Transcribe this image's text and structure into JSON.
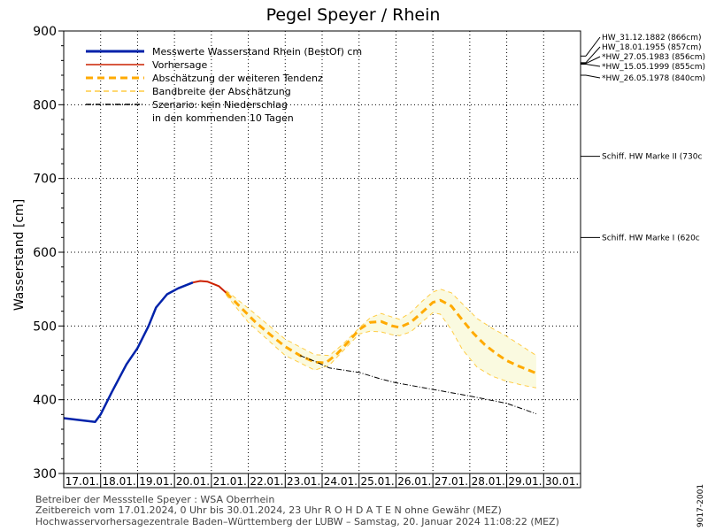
{
  "chart_data": {
    "type": "line",
    "title": "Pegel Speyer / Rhein",
    "ylabel": "Wasserstand  [cm]",
    "ylim": [
      300,
      900
    ],
    "yticks": [
      300,
      400,
      500,
      600,
      700,
      800,
      900
    ],
    "x_day_labels": [
      "17.01.",
      "18.01.",
      "19.01.",
      "20.01.",
      "21.01.",
      "22.01.",
      "23.01.",
      "24.01.",
      "25.01.",
      "26.01.",
      "27.01.",
      "28.01.",
      "29.01.",
      "30.01."
    ],
    "grid": true,
    "legend": {
      "placement": "top-left",
      "entries": [
        {
          "label": "Messwerte Wasserstand Rhein (BestOf)   cm",
          "color": "#0022aa",
          "style": "solid-thick"
        },
        {
          "label": "Vorhersage",
          "color": "#cc2200",
          "style": "solid"
        },
        {
          "label": "Abschätzung der weiteren Tendenz",
          "color": "#ffaa00",
          "style": "dashed-thick"
        },
        {
          "label": "Bandbreite der Abschätzung",
          "color": "#ffcc44",
          "style": "dashed"
        },
        {
          "label": "Szenario: kein Niederschlag",
          "color": "#000000",
          "style": "dashdot"
        },
        {
          "label": "in den kommenden 10 Tagen",
          "color": null,
          "style": "none"
        }
      ]
    },
    "series": [
      {
        "name": "Messwerte Wasserstand Rhein (BestOf)",
        "color": "#0022aa",
        "points": [
          [
            0,
            375
          ],
          [
            0.5,
            372
          ],
          [
            0.85,
            370
          ],
          [
            1.0,
            380
          ],
          [
            1.3,
            410
          ],
          [
            1.7,
            448
          ],
          [
            2.0,
            470
          ],
          [
            2.3,
            500
          ],
          [
            2.5,
            525
          ],
          [
            2.8,
            543
          ],
          [
            3.1,
            551
          ],
          [
            3.5,
            559
          ]
        ]
      },
      {
        "name": "Vorhersage",
        "color": "#cc2200",
        "points": [
          [
            3.5,
            559
          ],
          [
            3.7,
            561
          ],
          [
            3.9,
            560
          ],
          [
            4.2,
            554
          ],
          [
            4.4,
            545
          ]
        ]
      },
      {
        "name": "Abschätzung der weiteren Tendenz",
        "color": "#ffaa00",
        "points": [
          [
            4.4,
            545
          ],
          [
            4.8,
            525
          ],
          [
            5.2,
            505
          ],
          [
            5.6,
            488
          ],
          [
            6.0,
            472
          ],
          [
            6.4,
            460
          ],
          [
            6.8,
            451
          ],
          [
            7.1,
            450
          ],
          [
            7.4,
            462
          ],
          [
            7.7,
            478
          ],
          [
            8.0,
            495
          ],
          [
            8.3,
            505
          ],
          [
            8.6,
            506
          ],
          [
            8.9,
            500
          ],
          [
            9.1,
            498
          ],
          [
            9.4,
            505
          ],
          [
            9.7,
            518
          ],
          [
            10.0,
            532
          ],
          [
            10.2,
            535
          ],
          [
            10.5,
            527
          ],
          [
            10.8,
            508
          ],
          [
            11.1,
            490
          ],
          [
            11.4,
            475
          ],
          [
            11.7,
            463
          ],
          [
            12.0,
            453
          ],
          [
            12.3,
            446
          ],
          [
            12.6,
            440
          ],
          [
            12.8,
            436
          ]
        ]
      },
      {
        "name": "Szenario: kein Niederschlag",
        "color": "#000000",
        "points": [
          [
            6.4,
            460
          ],
          [
            6.8,
            452
          ],
          [
            7.2,
            443
          ],
          [
            8.0,
            437
          ],
          [
            8.6,
            428
          ],
          [
            9.0,
            423
          ],
          [
            10.0,
            414
          ],
          [
            11.0,
            405
          ],
          [
            12.0,
            395
          ],
          [
            12.8,
            381
          ]
        ]
      }
    ],
    "band": {
      "upper": [
        [
          4.4,
          548
        ],
        [
          5.0,
          524
        ],
        [
          6.0,
          482
        ],
        [
          6.8,
          461
        ],
        [
          7.2,
          460
        ],
        [
          7.6,
          477
        ],
        [
          8.0,
          497
        ],
        [
          8.3,
          511
        ],
        [
          8.6,
          517
        ],
        [
          8.9,
          512
        ],
        [
          9.1,
          509
        ],
        [
          9.4,
          518
        ],
        [
          9.7,
          533
        ],
        [
          10.0,
          546
        ],
        [
          10.2,
          550
        ],
        [
          10.5,
          545
        ],
        [
          10.8,
          530
        ],
        [
          11.2,
          510
        ],
        [
          11.6,
          497
        ],
        [
          12.0,
          486
        ],
        [
          12.4,
          473
        ],
        [
          12.8,
          460
        ]
      ],
      "lower": [
        [
          12.8,
          416
        ],
        [
          12.4,
          420
        ],
        [
          12.0,
          425
        ],
        [
          11.6,
          432
        ],
        [
          11.2,
          444
        ],
        [
          10.8,
          468
        ],
        [
          10.5,
          495
        ],
        [
          10.2,
          516
        ],
        [
          10.0,
          518
        ],
        [
          9.7,
          505
        ],
        [
          9.4,
          492
        ],
        [
          9.1,
          487
        ],
        [
          8.9,
          488
        ],
        [
          8.6,
          492
        ],
        [
          8.3,
          493
        ],
        [
          8.0,
          489
        ],
        [
          7.6,
          468
        ],
        [
          7.2,
          447
        ],
        [
          6.8,
          440
        ],
        [
          6.0,
          460
        ],
        [
          5.0,
          505
        ],
        [
          4.4,
          542
        ]
      ]
    },
    "reference_marks": [
      {
        "label": "HW_31.12.1882 (866cm)",
        "value": 866
      },
      {
        "label": "HW_18.01.1955 (857cm)",
        "value": 857
      },
      {
        "label": "*HW_27.05.1983 (856cm)",
        "value": 856
      },
      {
        "label": "*HW_15.05.1999 (855cm)",
        "value": 855
      },
      {
        "label": "*HW_26.05.1978 (840cm)",
        "value": 840
      },
      {
        "label": "Schiff. HW Marke II (730c",
        "value": 730
      },
      {
        "label": "Schiff. HW Marke I (620c",
        "value": 620
      }
    ]
  },
  "footer": {
    "line1": "Betreiber der Messstelle Speyer : WSA Oberrhein",
    "line2": "Zeitbereich vom 17.01.2024, 0 Uhr bis 30.01.2024, 23 Uhr    R O H D A T E N  ohne Gewähr (MEZ)",
    "line3": "Hochwasservorhersagezentrale Baden–Württemberg der LUBW – Samstag, 20. Januar 2024 11:08:22 (MEZ)"
  },
  "side_code": "9017-2001"
}
